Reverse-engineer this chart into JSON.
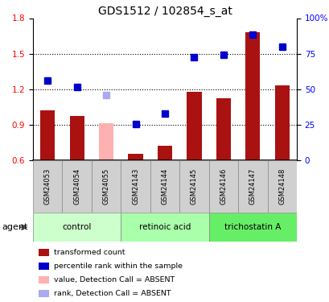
{
  "title": "GDS1512 / 102854_s_at",
  "samples": [
    "GSM24053",
    "GSM24054",
    "GSM24055",
    "GSM24143",
    "GSM24144",
    "GSM24145",
    "GSM24146",
    "GSM24147",
    "GSM24148"
  ],
  "bar_values": [
    1.02,
    0.97,
    0.91,
    0.65,
    0.72,
    1.18,
    1.12,
    1.68,
    1.23
  ],
  "bar_absent": [
    false,
    false,
    true,
    false,
    false,
    false,
    false,
    false,
    false
  ],
  "rank_values": [
    1.27,
    1.22,
    1.15,
    0.905,
    0.99,
    1.47,
    1.49,
    1.66,
    1.56
  ],
  "rank_absent": [
    false,
    false,
    true,
    false,
    false,
    false,
    false,
    false,
    false
  ],
  "bar_color_present": "#aa1111",
  "bar_color_absent": "#ffb0b0",
  "rank_color_present": "#0000cc",
  "rank_color_absent": "#aaaaee",
  "ylim_left": [
    0.6,
    1.8
  ],
  "ylim_right": [
    0,
    100
  ],
  "yticks_left": [
    0.6,
    0.9,
    1.2,
    1.5,
    1.8
  ],
  "yticks_right": [
    0,
    25,
    50,
    75,
    100
  ],
  "ytick_labels_right": [
    "0",
    "25",
    "50",
    "75",
    "100%"
  ],
  "dotted_lines": [
    0.9,
    1.2,
    1.5
  ],
  "groups": [
    {
      "label": "control",
      "start": 0,
      "end": 3,
      "color": "#ccffcc"
    },
    {
      "label": "retinoic acid",
      "start": 3,
      "end": 6,
      "color": "#aaffaa"
    },
    {
      "label": "trichostatin A",
      "start": 6,
      "end": 9,
      "color": "#66ee66"
    }
  ],
  "sample_box_color": "#d0d0d0",
  "agent_label": "agent",
  "legend_items": [
    {
      "label": "transformed count",
      "color": "#aa1111",
      "shape": "rect"
    },
    {
      "label": "percentile rank within the sample",
      "color": "#0000cc",
      "shape": "rect"
    },
    {
      "label": "value, Detection Call = ABSENT",
      "color": "#ffb0b0",
      "shape": "rect"
    },
    {
      "label": "rank, Detection Call = ABSENT",
      "color": "#aaaaee",
      "shape": "rect"
    }
  ]
}
